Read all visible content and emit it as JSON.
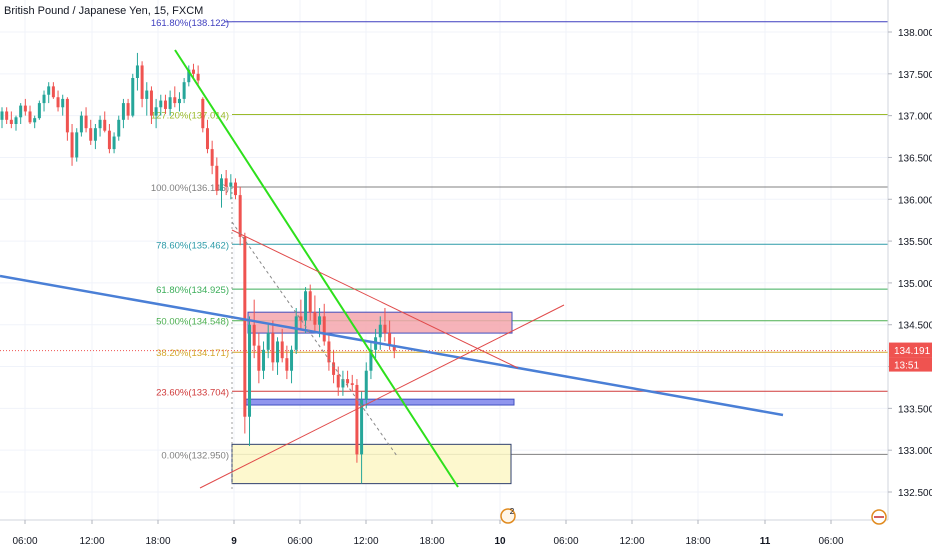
{
  "chart_data": {
    "type": "candlestick",
    "title": "British Pound / Japanese Yen, 15, FXCM",
    "ylim": [
      132.3,
      138.35
    ],
    "x_ticks": [
      "06:00",
      "12:00",
      "18:00",
      "9",
      "06:00",
      "12:00",
      "18:00",
      "10",
      "06:00",
      "12:00",
      "18:00",
      "11",
      "06:00"
    ],
    "y_ticks": [
      "138.000",
      "137.500",
      "137.000",
      "136.500",
      "136.000",
      "135.500",
      "135.000",
      "134.500",
      "134.000",
      "133.500",
      "133.000",
      "132.500"
    ],
    "y_tick_values": [
      138.0,
      137.5,
      137.0,
      136.5,
      136.0,
      135.5,
      135.0,
      134.5,
      134.0,
      133.5,
      133.0,
      132.5
    ],
    "last_price": {
      "value": 134.191,
      "label": "134.191",
      "timer": "13:51",
      "color": "#ef5350"
    },
    "fib_levels": [
      {
        "label": "161.80%(138.122)",
        "price": 138.122,
        "color": "#3f3fbf"
      },
      {
        "label": "127.20%(137.014)",
        "price": 137.014,
        "color": "#9bbb2a"
      },
      {
        "label": "100.00%(136.146)",
        "price": 136.146,
        "color": "#808080"
      },
      {
        "label": "78.60%(135.462)",
        "price": 135.462,
        "color": "#2c9aa8"
      },
      {
        "label": "61.80%(134.925)",
        "price": 134.925,
        "color": "#3cae5a"
      },
      {
        "label": "50.00%(134.548)",
        "price": 134.548,
        "color": "#4caf50"
      },
      {
        "label": "38.20%(134.171)",
        "price": 134.171,
        "color": "#d4a72c"
      },
      {
        "label": "23.60%(133.704)",
        "price": 133.704,
        "color": "#d03a3a"
      },
      {
        "label": "0.00%(132.950)",
        "price": 132.95,
        "color": "#808080"
      }
    ],
    "zones": [
      {
        "name": "resistance-zone",
        "price_top": 134.65,
        "price_bottom": 134.4,
        "fill": "#f4a6ad",
        "stroke": "#3f4fbf"
      },
      {
        "name": "support-zone",
        "price_top": 133.61,
        "price_bottom": 133.54,
        "fill": "#7b83eb",
        "stroke": "#3f4fbf"
      },
      {
        "name": "range-zone",
        "price_top": 133.07,
        "price_bottom": 132.6,
        "fill": "#fdf7c6",
        "stroke": "#2f3f6f"
      }
    ],
    "event_markers": [
      {
        "label": "2",
        "color": "#e08a1e"
      }
    ],
    "candles": [
      [
        136.95,
        137.1,
        136.85,
        137.05
      ],
      [
        137.05,
        137.1,
        136.9,
        136.95
      ],
      [
        136.95,
        137.05,
        136.85,
        136.9
      ],
      [
        136.9,
        137.0,
        136.82,
        136.98
      ],
      [
        136.98,
        137.15,
        136.9,
        137.12
      ],
      [
        137.12,
        137.2,
        137.0,
        137.05
      ],
      [
        137.05,
        137.12,
        136.9,
        136.92
      ],
      [
        136.92,
        137.0,
        136.85,
        136.97
      ],
      [
        136.97,
        137.18,
        136.95,
        137.15
      ],
      [
        137.15,
        137.3,
        137.05,
        137.25
      ],
      [
        137.25,
        137.4,
        137.15,
        137.35
      ],
      [
        137.35,
        137.4,
        137.2,
        137.22
      ],
      [
        137.22,
        137.3,
        137.05,
        137.1
      ],
      [
        137.1,
        137.25,
        137.0,
        137.2
      ],
      [
        137.2,
        137.22,
        136.7,
        136.8
      ],
      [
        136.8,
        136.9,
        136.4,
        136.5
      ],
      [
        136.5,
        136.85,
        136.45,
        136.8
      ],
      [
        136.8,
        137.05,
        136.75,
        137.0
      ],
      [
        137.0,
        137.1,
        136.8,
        136.85
      ],
      [
        136.85,
        136.95,
        136.65,
        136.7
      ],
      [
        136.7,
        136.9,
        136.6,
        136.85
      ],
      [
        136.85,
        137.0,
        136.75,
        136.95
      ],
      [
        136.95,
        137.05,
        136.8,
        136.82
      ],
      [
        136.82,
        136.9,
        136.55,
        136.6
      ],
      [
        136.6,
        136.8,
        136.55,
        136.75
      ],
      [
        136.75,
        137.0,
        136.7,
        136.95
      ],
      [
        136.95,
        137.2,
        136.85,
        137.15
      ],
      [
        137.15,
        137.2,
        136.95,
        137.0
      ],
      [
        137.0,
        137.5,
        136.98,
        137.45
      ],
      [
        137.45,
        137.75,
        137.3,
        137.6
      ],
      [
        137.6,
        137.65,
        137.1,
        137.2
      ],
      [
        137.2,
        137.4,
        137.0,
        137.3
      ],
      [
        137.3,
        137.35,
        136.9,
        137.0
      ],
      [
        137.0,
        137.2,
        136.85,
        137.1
      ],
      [
        137.1,
        137.25,
        137.0,
        137.18
      ],
      [
        137.18,
        137.25,
        137.02,
        137.08
      ],
      [
        137.08,
        137.3,
        137.0,
        137.22
      ],
      [
        137.22,
        137.35,
        137.1,
        137.15
      ],
      [
        137.15,
        137.28,
        137.05,
        137.2
      ],
      [
        137.2,
        137.45,
        137.15,
        137.4
      ],
      [
        137.4,
        137.6,
        137.35,
        137.55
      ],
      [
        137.55,
        137.62,
        137.45,
        137.5
      ],
      [
        137.5,
        137.6,
        137.35,
        137.42
      ],
      [
        137.2,
        137.22,
        136.8,
        136.85
      ],
      [
        136.85,
        136.95,
        136.55,
        136.6
      ],
      [
        136.6,
        136.7,
        136.3,
        136.4
      ],
      [
        136.4,
        136.5,
        136.05,
        136.1
      ],
      [
        136.1,
        136.3,
        135.9,
        136.25
      ],
      [
        136.25,
        136.35,
        136.05,
        136.15
      ],
      [
        136.15,
        136.3,
        136.0,
        136.2
      ],
      [
        136.2,
        136.25,
        136.0,
        136.05
      ],
      [
        136.05,
        136.15,
        135.45,
        135.55
      ],
      [
        135.55,
        135.6,
        133.2,
        133.4
      ],
      [
        133.4,
        134.6,
        133.05,
        134.5
      ],
      [
        134.5,
        134.8,
        134.1,
        134.25
      ],
      [
        134.25,
        134.4,
        133.8,
        133.95
      ],
      [
        133.95,
        134.3,
        133.85,
        134.2
      ],
      [
        134.2,
        134.5,
        134.1,
        134.4
      ],
      [
        134.4,
        134.55,
        133.95,
        134.05
      ],
      [
        134.05,
        134.35,
        133.9,
        134.3
      ],
      [
        134.3,
        134.45,
        134.05,
        134.1
      ],
      [
        134.1,
        134.25,
        133.85,
        133.95
      ],
      [
        133.95,
        134.25,
        133.8,
        134.2
      ],
      [
        134.2,
        134.7,
        134.15,
        134.6
      ],
      [
        134.6,
        134.8,
        134.45,
        134.55
      ],
      [
        134.55,
        134.95,
        134.4,
        134.9
      ],
      [
        134.9,
        134.98,
        134.55,
        134.65
      ],
      [
        134.65,
        134.85,
        134.4,
        134.5
      ],
      [
        134.5,
        134.7,
        134.35,
        134.6
      ],
      [
        134.6,
        134.75,
        134.25,
        134.3
      ],
      [
        134.3,
        134.4,
        133.95,
        134.05
      ],
      [
        134.05,
        134.2,
        133.8,
        133.9
      ],
      [
        133.9,
        134.0,
        133.65,
        133.75
      ],
      [
        133.75,
        133.95,
        133.65,
        133.85
      ],
      [
        133.85,
        133.95,
        133.75,
        133.8
      ],
      [
        133.8,
        133.9,
        133.7,
        133.78
      ],
      [
        133.78,
        133.85,
        132.85,
        132.95
      ],
      [
        132.95,
        133.7,
        132.6,
        133.6
      ],
      [
        133.6,
        134.05,
        133.5,
        133.95
      ],
      [
        133.95,
        134.3,
        133.85,
        134.2
      ],
      [
        134.2,
        134.45,
        134.1,
        134.35
      ],
      [
        134.35,
        134.6,
        134.2,
        134.5
      ],
      [
        134.5,
        134.7,
        134.3,
        134.4
      ],
      [
        134.4,
        134.55,
        134.2,
        134.25
      ],
      [
        134.25,
        134.35,
        134.1,
        134.19
      ]
    ]
  }
}
